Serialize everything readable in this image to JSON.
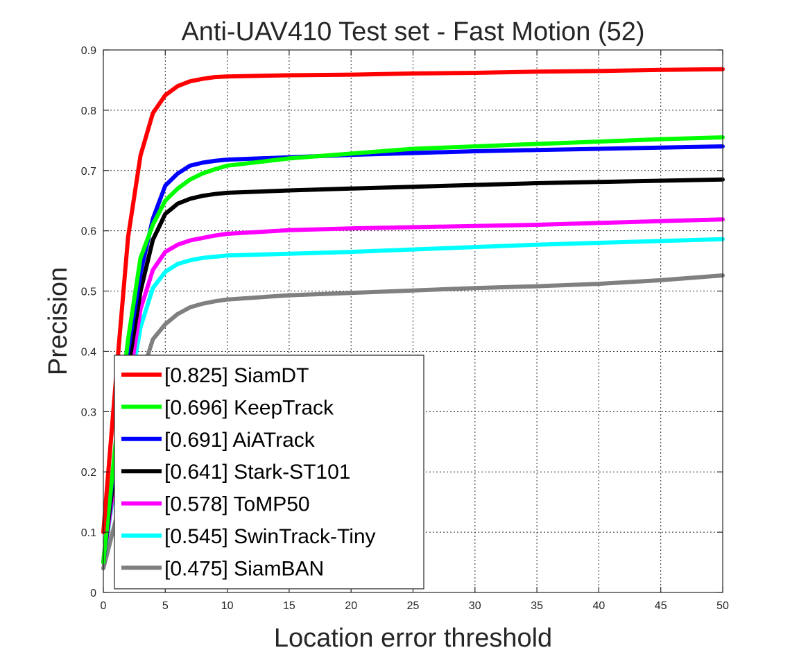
{
  "chart_data": {
    "type": "line",
    "title": "Anti-UAV410 Test set - Fast Motion (52)",
    "xlabel": "Location error threshold",
    "ylabel": "Precision",
    "xlim": [
      0,
      50
    ],
    "ylim": [
      0,
      0.9
    ],
    "xticks": [
      0,
      5,
      10,
      15,
      20,
      25,
      30,
      35,
      40,
      45,
      50
    ],
    "yticks": [
      0,
      0.1,
      0.2,
      0.3,
      0.4,
      0.5,
      0.6,
      0.7,
      0.8,
      0.9
    ],
    "grid": true,
    "legend_position": "bottom-left",
    "x": [
      0,
      1,
      2,
      3,
      4,
      5,
      6,
      7,
      8,
      9,
      10,
      15,
      20,
      25,
      30,
      35,
      40,
      45,
      50
    ],
    "series": [
      {
        "name": "[0.825] SiamDT",
        "color": "#ff0000",
        "values": [
          0.1,
          0.35,
          0.59,
          0.725,
          0.795,
          0.825,
          0.84,
          0.848,
          0.852,
          0.855,
          0.856,
          0.858,
          0.859,
          0.861,
          0.862,
          0.864,
          0.865,
          0.867,
          0.868
        ]
      },
      {
        "name": "[0.696] KeepTrack",
        "color": "#00ff00",
        "values": [
          0.05,
          0.25,
          0.42,
          0.555,
          0.61,
          0.65,
          0.67,
          0.685,
          0.695,
          0.702,
          0.708,
          0.72,
          0.728,
          0.736,
          0.74,
          0.744,
          0.748,
          0.752,
          0.755
        ]
      },
      {
        "name": "[0.691] AiATrack",
        "color": "#0000ff",
        "values": [
          0.05,
          0.24,
          0.4,
          0.53,
          0.62,
          0.675,
          0.695,
          0.708,
          0.713,
          0.716,
          0.718,
          0.722,
          0.726,
          0.729,
          0.732,
          0.734,
          0.736,
          0.738,
          0.74
        ]
      },
      {
        "name": "[0.641] Stark-ST101",
        "color": "#000000",
        "values": [
          0.05,
          0.22,
          0.37,
          0.5,
          0.585,
          0.628,
          0.645,
          0.653,
          0.658,
          0.661,
          0.663,
          0.667,
          0.67,
          0.673,
          0.676,
          0.679,
          0.681,
          0.683,
          0.685
        ]
      },
      {
        "name": "[0.578] ToMP50",
        "color": "#ff00ff",
        "values": [
          0.05,
          0.2,
          0.34,
          0.47,
          0.535,
          0.565,
          0.577,
          0.584,
          0.588,
          0.592,
          0.595,
          0.601,
          0.604,
          0.606,
          0.608,
          0.61,
          0.613,
          0.616,
          0.619
        ]
      },
      {
        "name": "[0.545] SwinTrack-Tiny",
        "color": "#00ffff",
        "values": [
          0.05,
          0.19,
          0.32,
          0.44,
          0.505,
          0.532,
          0.545,
          0.551,
          0.555,
          0.557,
          0.559,
          0.562,
          0.565,
          0.569,
          0.573,
          0.577,
          0.58,
          0.583,
          0.586
        ]
      },
      {
        "name": "[0.475] SiamBAN",
        "color": "#808080",
        "values": [
          0.04,
          0.12,
          0.25,
          0.355,
          0.42,
          0.445,
          0.462,
          0.473,
          0.479,
          0.483,
          0.486,
          0.493,
          0.497,
          0.501,
          0.505,
          0.508,
          0.512,
          0.518,
          0.526
        ]
      }
    ]
  }
}
